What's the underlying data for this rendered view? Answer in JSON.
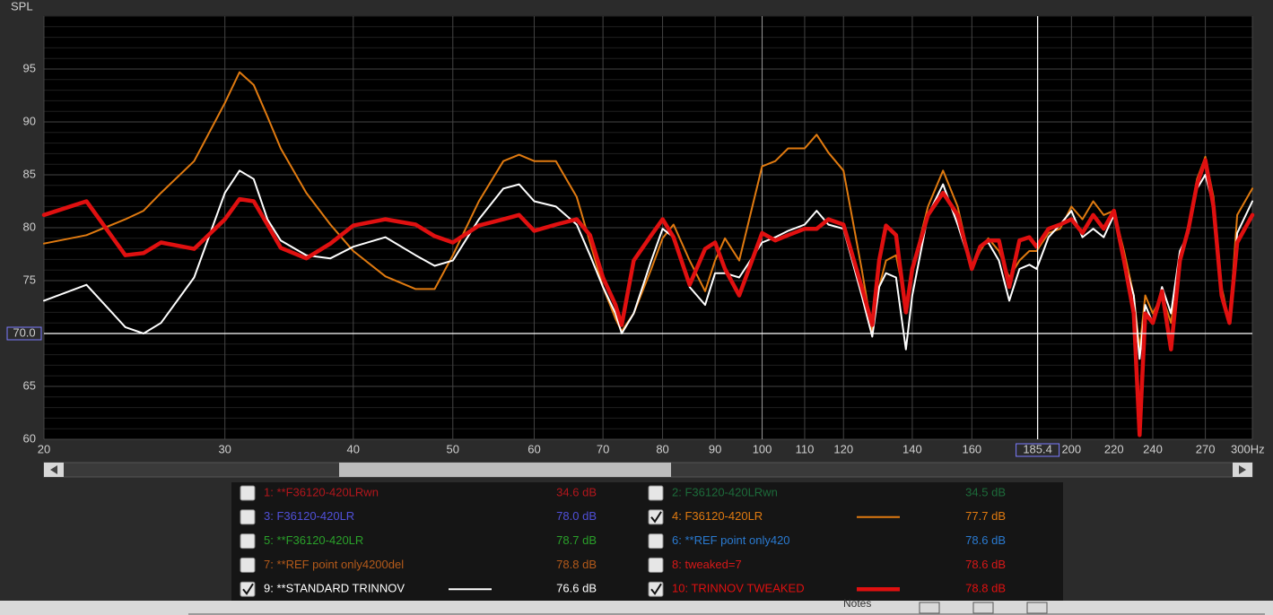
{
  "chart_data": {
    "type": "line",
    "y_label": "SPL",
    "xscale": "log",
    "xlim": [
      20,
      300
    ],
    "ylim": [
      60,
      100
    ],
    "xticks": [
      20,
      30,
      40,
      50,
      60,
      70,
      80,
      90,
      100,
      110,
      120,
      140,
      160,
      200,
      220,
      240,
      270,
      {
        "value": 300,
        "label": "300Hz"
      }
    ],
    "yticks": [
      60,
      65,
      70,
      75,
      80,
      85,
      90,
      95
    ],
    "grid": true,
    "cursor": {
      "x": {
        "value": 185.4,
        "label": "185.4"
      },
      "y": {
        "value": 70,
        "label": "70.0"
      }
    },
    "x": [
      20,
      22,
      24,
      25,
      26,
      28,
      30,
      31,
      32,
      33,
      34,
      36,
      38,
      40,
      43,
      46,
      48,
      50,
      53,
      56,
      58,
      60,
      63,
      66,
      68,
      70,
      72,
      73,
      75,
      78,
      80,
      82,
      85,
      88,
      90,
      92,
      95,
      100,
      103,
      106,
      110,
      113,
      116,
      120,
      125,
      128,
      130,
      132,
      135,
      138,
      140,
      145,
      150,
      155,
      160,
      163,
      166,
      170,
      174,
      178,
      182,
      185,
      190,
      195,
      200,
      205,
      210,
      215,
      220,
      225,
      230,
      233,
      236,
      240,
      245,
      250,
      255,
      260,
      265,
      270,
      275,
      280,
      285,
      290,
      300
    ],
    "series": [
      {
        "name": "1: **F36120-420LRwn",
        "color": "#b3161c",
        "level": "34.6 dB",
        "checked": false
      },
      {
        "name": "2: F36120-420LRwn",
        "color": "#1d6b3a",
        "level": "34.5 dB",
        "checked": false
      },
      {
        "name": "3: F36120-420LR",
        "color": "#5050d8",
        "level": "78.0 dB",
        "checked": false
      },
      {
        "name": "4: F36120-420LR",
        "color": "#e07a10",
        "level": "77.7 dB",
        "checked": true,
        "line_width": 2,
        "values": [
          78.5,
          79.3,
          80.8,
          81.6,
          83.3,
          86.3,
          91.8,
          94.7,
          93.5,
          90.5,
          87.5,
          83.3,
          80.3,
          77.8,
          75.4,
          74.2,
          74.2,
          77.4,
          82.5,
          86.3,
          86.9,
          86.3,
          86.3,
          82.9,
          78.6,
          74.4,
          71.4,
          70.2,
          71.9,
          76.1,
          79,
          80.3,
          76.9,
          74,
          76.9,
          79,
          76.9,
          85.8,
          86.3,
          87.5,
          87.5,
          88.8,
          87.1,
          85.4,
          76.1,
          70.2,
          74.4,
          76.9,
          77.4,
          72.7,
          76.1,
          82,
          85.4,
          82,
          76.1,
          77.8,
          79,
          77.8,
          75.3,
          76.9,
          77.8,
          77.8,
          79.5,
          79.9,
          82,
          80.8,
          82.5,
          81.2,
          81.6,
          77.8,
          73.6,
          68.5,
          73.6,
          71.9,
          73.6,
          71,
          76.9,
          80.3,
          84.6,
          86.7,
          82.9,
          74.4,
          71,
          81.2,
          83.7
        ]
      },
      {
        "name": "5: **F36120-420LR",
        "color": "#2aa02a",
        "level": "78.7 dB",
        "checked": false
      },
      {
        "name": "6: **REF point only420",
        "color": "#2a7ad0",
        "level": "78.6 dB",
        "checked": false
      },
      {
        "name": "7: **REF point only4200del",
        "color": "#b45a1a",
        "level": "78.8 dB",
        "checked": false
      },
      {
        "name": "8: tweaked=7",
        "color": "#d81818",
        "level": "78.6 dB",
        "checked": false
      },
      {
        "name": "9: **STANDARD TRINNOV",
        "color": "#ffffff",
        "level": "76.6 dB",
        "checked": true,
        "line_width": 2,
        "values": [
          73.1,
          74.6,
          70.6,
          70,
          71,
          75.3,
          83.3,
          85.4,
          84.6,
          80.8,
          78.8,
          77.4,
          77.1,
          78.2,
          79.1,
          77.4,
          76.4,
          76.9,
          80.8,
          83.7,
          84.1,
          82.5,
          82,
          80.3,
          77.4,
          74.4,
          71.9,
          70,
          71.9,
          76.9,
          79.9,
          79.1,
          74.4,
          72.7,
          75.7,
          75.7,
          75.3,
          78.6,
          79.1,
          79.7,
          80.3,
          81.6,
          80.3,
          79.9,
          73.6,
          69.7,
          74.4,
          75.7,
          75.3,
          68.5,
          73.6,
          81.2,
          84.1,
          80.3,
          76.1,
          78.2,
          78.6,
          76.9,
          73.1,
          76.1,
          76.5,
          76.1,
          79.1,
          80.3,
          81.6,
          79.1,
          79.9,
          79.1,
          81.2,
          76.9,
          73.6,
          67.6,
          72.7,
          71,
          74.4,
          71.9,
          77.8,
          79.5,
          83.7,
          85,
          82,
          73.6,
          71,
          79.5,
          82.5
        ]
      },
      {
        "name": "10: TRINNOV TWEAKED",
        "color": "#e01010",
        "level": "78.8 dB",
        "checked": true,
        "line_width": 4.5,
        "values": [
          81.2,
          82.5,
          77.4,
          77.6,
          78.6,
          78,
          80.8,
          82.7,
          82.5,
          80.3,
          78.1,
          77.1,
          78.5,
          80.2,
          80.8,
          80.3,
          79.2,
          78.6,
          80.2,
          80.8,
          81.2,
          79.7,
          80.3,
          80.8,
          79.3,
          75.3,
          72.7,
          70.8,
          76.9,
          79.3,
          80.8,
          79.1,
          74.6,
          78,
          78.6,
          76.1,
          73.6,
          79.5,
          78.8,
          79.3,
          79.9,
          79.9,
          80.8,
          80.3,
          74.4,
          70.8,
          76.9,
          80.2,
          79.3,
          72,
          76.1,
          81.2,
          83.3,
          81.2,
          76.1,
          78.2,
          78.8,
          78.8,
          74.4,
          78.8,
          79.1,
          78.2,
          79.9,
          80.3,
          80.8,
          79.5,
          81.2,
          79.9,
          81.6,
          76.9,
          71.9,
          60.4,
          71.9,
          71,
          74,
          68.5,
          76.9,
          79.9,
          84.1,
          86.4,
          82,
          73.6,
          71,
          78.6,
          81.2
        ]
      }
    ]
  },
  "toolbar": {
    "notes": "Notes"
  }
}
